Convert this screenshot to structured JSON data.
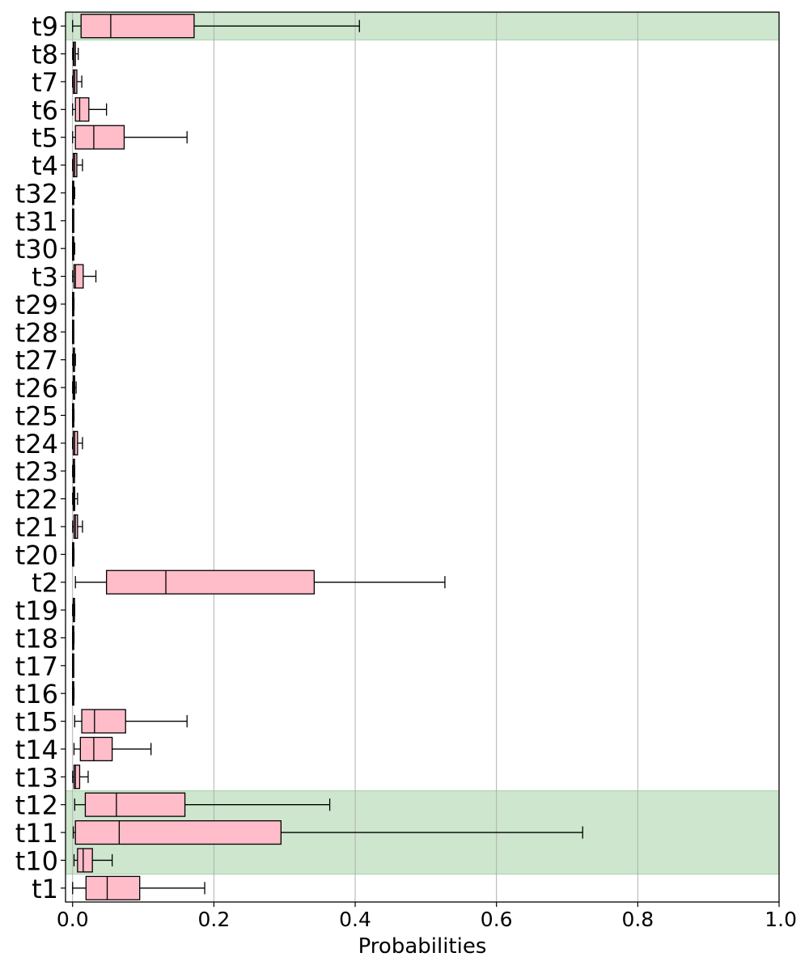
{
  "chart_data": {
    "type": "boxplot",
    "orientation": "horizontal",
    "title": "",
    "xlabel": "Probabilities",
    "ylabel": "",
    "xlim": [
      -0.01,
      1.0
    ],
    "xticks": [
      "0.0",
      "0.2",
      "0.4",
      "0.6",
      "0.8",
      "1.0"
    ],
    "xtick_values": [
      0,
      0.2,
      0.4,
      0.6,
      0.8,
      1.0
    ],
    "grid": "vertical",
    "box_color": "#ffbcc9",
    "highlight_color": "#cde6cd",
    "highlighted": [
      "t9",
      "t12",
      "t11",
      "t10"
    ],
    "categories": [
      "t9",
      "t8",
      "t7",
      "t6",
      "t5",
      "t4",
      "t32",
      "t31",
      "t30",
      "t3",
      "t29",
      "t28",
      "t27",
      "t26",
      "t25",
      "t24",
      "t23",
      "t22",
      "t21",
      "t20",
      "t2",
      "t19",
      "t18",
      "t17",
      "t16",
      "t15",
      "t14",
      "t13",
      "t12",
      "t11",
      "t10",
      "t1"
    ],
    "boxes": [
      {
        "label": "t9",
        "whislo": 0.0,
        "q1": 0.012,
        "med": 0.054,
        "q3": 0.172,
        "whishi": 0.406
      },
      {
        "label": "t8",
        "whislo": 0.0,
        "q1": 0.001,
        "med": 0.002,
        "q3": 0.004,
        "whishi": 0.008
      },
      {
        "label": "t7",
        "whislo": 0.0,
        "q1": 0.001,
        "med": 0.003,
        "q3": 0.006,
        "whishi": 0.013
      },
      {
        "label": "t6",
        "whislo": 0.0,
        "q1": 0.004,
        "med": 0.01,
        "q3": 0.023,
        "whishi": 0.048
      },
      {
        "label": "t5",
        "whislo": 0.0,
        "q1": 0.004,
        "med": 0.03,
        "q3": 0.073,
        "whishi": 0.162
      },
      {
        "label": "t4",
        "whislo": 0.0,
        "q1": 0.001,
        "med": 0.003,
        "q3": 0.006,
        "whishi": 0.014
      },
      {
        "label": "t32",
        "whislo": 0.0,
        "q1": 0.0,
        "med": 0.001,
        "q3": 0.001,
        "whishi": 0.003
      },
      {
        "label": "t31",
        "whislo": 0.0,
        "q1": 0.0,
        "med": 0.0,
        "q3": 0.001,
        "whishi": 0.001
      },
      {
        "label": "t30",
        "whislo": 0.0,
        "q1": 0.0,
        "med": 0.001,
        "q3": 0.001,
        "whishi": 0.003
      },
      {
        "label": "t3",
        "whislo": 0.0,
        "q1": 0.002,
        "med": 0.004,
        "q3": 0.015,
        "whishi": 0.033
      },
      {
        "label": "t29",
        "whislo": 0.0,
        "q1": 0.0,
        "med": 0.001,
        "q3": 0.001,
        "whishi": 0.002
      },
      {
        "label": "t28",
        "whislo": 0.0,
        "q1": 0.0,
        "med": 0.0,
        "q3": 0.001,
        "whishi": 0.001
      },
      {
        "label": "t27",
        "whislo": 0.0,
        "q1": 0.001,
        "med": 0.001,
        "q3": 0.002,
        "whishi": 0.004
      },
      {
        "label": "t26",
        "whislo": 0.0,
        "q1": 0.001,
        "med": 0.002,
        "q3": 0.003,
        "whishi": 0.005
      },
      {
        "label": "t25",
        "whislo": 0.0,
        "q1": 0.0,
        "med": 0.001,
        "q3": 0.001,
        "whishi": 0.002
      },
      {
        "label": "t24",
        "whislo": 0.0,
        "q1": 0.001,
        "med": 0.003,
        "q3": 0.007,
        "whishi": 0.014
      },
      {
        "label": "t23",
        "whislo": 0.0,
        "q1": 0.001,
        "med": 0.001,
        "q3": 0.002,
        "whishi": 0.003
      },
      {
        "label": "t22",
        "whislo": 0.0,
        "q1": 0.001,
        "med": 0.002,
        "q3": 0.003,
        "whishi": 0.007
      },
      {
        "label": "t21",
        "whislo": 0.0,
        "q1": 0.002,
        "med": 0.004,
        "q3": 0.007,
        "whishi": 0.014
      },
      {
        "label": "t20",
        "whislo": 0.0,
        "q1": 0.0,
        "med": 0.001,
        "q3": 0.001,
        "whishi": 0.002
      },
      {
        "label": "t2",
        "whislo": 0.004,
        "q1": 0.048,
        "med": 0.132,
        "q3": 0.342,
        "whishi": 0.527
      },
      {
        "label": "t19",
        "whislo": 0.0,
        "q1": 0.001,
        "med": 0.001,
        "q3": 0.002,
        "whishi": 0.003
      },
      {
        "label": "t18",
        "whislo": 0.0,
        "q1": 0.0,
        "med": 0.001,
        "q3": 0.001,
        "whishi": 0.002
      },
      {
        "label": "t17",
        "whislo": 0.0,
        "q1": 0.0,
        "med": 0.0,
        "q3": 0.001,
        "whishi": 0.001
      },
      {
        "label": "t16",
        "whislo": 0.0,
        "q1": 0.0,
        "med": 0.001,
        "q3": 0.001,
        "whishi": 0.002
      },
      {
        "label": "t15",
        "whislo": 0.003,
        "q1": 0.013,
        "med": 0.031,
        "q3": 0.075,
        "whishi": 0.162
      },
      {
        "label": "t14",
        "whislo": 0.002,
        "q1": 0.011,
        "med": 0.03,
        "q3": 0.056,
        "whishi": 0.111
      },
      {
        "label": "t13",
        "whislo": 0.0,
        "q1": 0.002,
        "med": 0.004,
        "q3": 0.01,
        "whishi": 0.022
      },
      {
        "label": "t12",
        "whislo": 0.003,
        "q1": 0.018,
        "med": 0.062,
        "q3": 0.159,
        "whishi": 0.364
      },
      {
        "label": "t11",
        "whislo": 0.001,
        "q1": 0.004,
        "med": 0.066,
        "q3": 0.295,
        "whishi": 0.722
      },
      {
        "label": "t10",
        "whislo": 0.002,
        "q1": 0.007,
        "med": 0.015,
        "q3": 0.028,
        "whishi": 0.056
      },
      {
        "label": "t1",
        "whislo": 0.0,
        "q1": 0.019,
        "med": 0.049,
        "q3": 0.095,
        "whishi": 0.187
      }
    ]
  }
}
